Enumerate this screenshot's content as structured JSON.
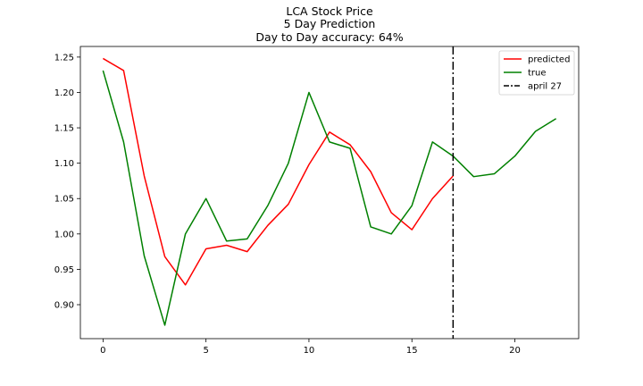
{
  "chart_data": {
    "type": "line",
    "title_lines": [
      "LCA Stock Price",
      "5 Day Prediction",
      "Day to Day accuracy: 64%"
    ],
    "xlabel": "",
    "ylabel": "",
    "xlim": [
      -1.1,
      23.1
    ],
    "ylim": [
      0.852,
      1.265
    ],
    "xticks": [
      0,
      5,
      10,
      15,
      20
    ],
    "yticks": [
      0.9,
      0.95,
      1.0,
      1.05,
      1.1,
      1.15,
      1.2,
      1.25
    ],
    "grid": false,
    "legend_position": "top-right",
    "series": [
      {
        "name": "predicted",
        "color": "#ff0000",
        "x": [
          0,
          1,
          2,
          3,
          4,
          5,
          6,
          7,
          8,
          9,
          10,
          11,
          12,
          13,
          14,
          15,
          16,
          17
        ],
        "y": [
          1.248,
          1.231,
          1.082,
          0.968,
          0.928,
          0.979,
          0.984,
          0.975,
          1.012,
          1.042,
          1.098,
          1.144,
          1.126,
          1.088,
          1.03,
          1.006,
          1.05,
          1.082
        ]
      },
      {
        "name": "true",
        "color": "#008000",
        "x": [
          0,
          1,
          2,
          3,
          4,
          5,
          6,
          7,
          8,
          9,
          10,
          11,
          12,
          13,
          14,
          15,
          16,
          17,
          18,
          19,
          20,
          21,
          22
        ],
        "y": [
          1.231,
          1.13,
          0.969,
          0.871,
          1.0,
          1.05,
          0.99,
          0.993,
          1.04,
          1.1,
          1.2,
          1.13,
          1.121,
          1.01,
          1.0,
          1.04,
          1.13,
          1.11,
          1.081,
          1.085,
          1.11,
          1.145,
          1.163
        ]
      }
    ],
    "vline": {
      "name": "april 27",
      "x": 17,
      "color": "#000000",
      "style": "dash-dot"
    }
  }
}
